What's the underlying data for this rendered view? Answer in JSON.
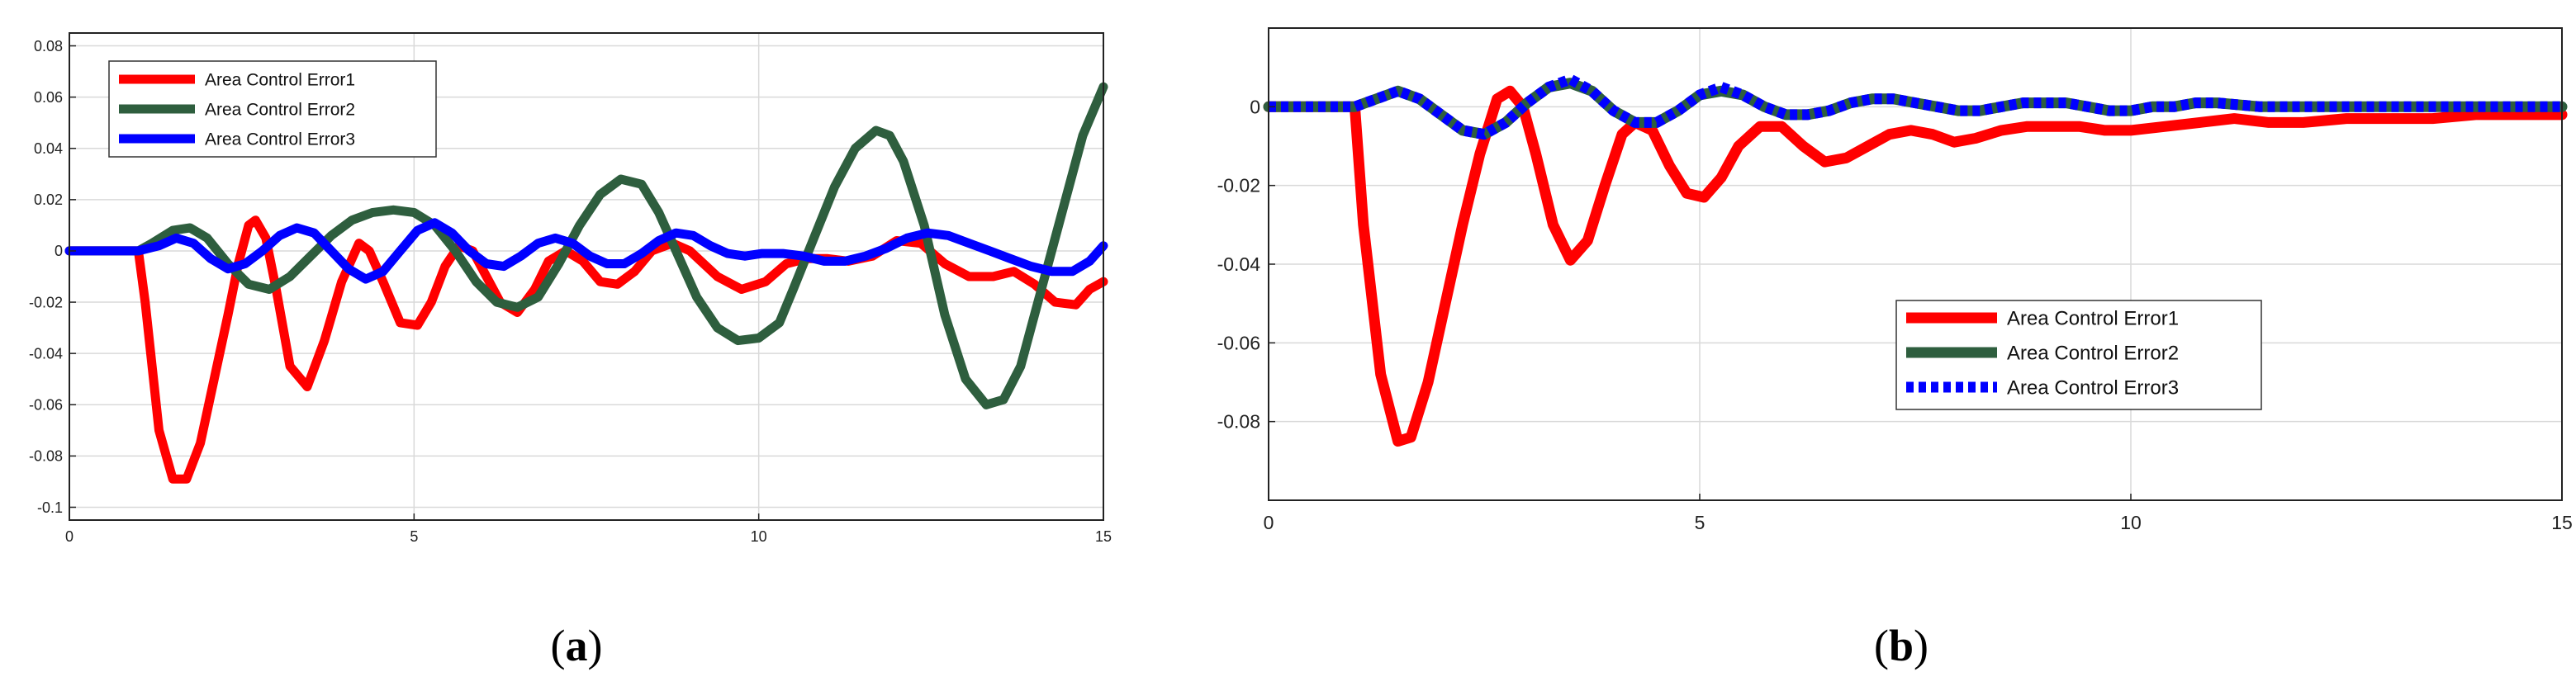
{
  "chart_data": [
    {
      "panel": "a",
      "type": "line",
      "xlim": [
        0,
        15
      ],
      "ylim": [
        -0.105,
        0.085
      ],
      "xticks": [
        0,
        5,
        10,
        15
      ],
      "yticks": [
        -0.1,
        -0.08,
        -0.06,
        -0.04,
        -0.02,
        0,
        0.02,
        0.04,
        0.06,
        0.08
      ],
      "ytick_labels": [
        "-0.1",
        "-0.08",
        "-0.06",
        "-0.04",
        "-0.02",
        "0",
        "0.02",
        "0.04",
        "0.06",
        "0.08"
      ],
      "grid": true,
      "legend_position": "top-left",
      "series": [
        {
          "name": "Area Control Error1",
          "color": "#ff0000",
          "style": "solid",
          "x": [
            0,
            1.0,
            1.1,
            1.3,
            1.5,
            1.7,
            1.9,
            2.1,
            2.3,
            2.45,
            2.6,
            2.7,
            2.85,
            3.0,
            3.2,
            3.45,
            3.7,
            3.95,
            4.2,
            4.35,
            4.55,
            4.8,
            5.05,
            5.25,
            5.45,
            5.65,
            5.85,
            6.05,
            6.25,
            6.5,
            6.75,
            6.95,
            7.2,
            7.45,
            7.7,
            7.95,
            8.2,
            8.45,
            8.75,
            9.0,
            9.4,
            9.75,
            10.1,
            10.4,
            10.7,
            11.0,
            11.3,
            11.65,
            12.0,
            12.35,
            12.7,
            13.05,
            13.4,
            13.7,
            14.0,
            14.3,
            14.6,
            14.8,
            15.0
          ],
          "y": [
            0,
            0,
            -0.02,
            -0.07,
            -0.089,
            -0.089,
            -0.075,
            -0.05,
            -0.025,
            -0.005,
            0.01,
            0.012,
            0.005,
            -0.015,
            -0.045,
            -0.053,
            -0.035,
            -0.012,
            0.003,
            0.0,
            -0.012,
            -0.028,
            -0.029,
            -0.02,
            -0.006,
            0.002,
            0.0,
            -0.01,
            -0.02,
            -0.024,
            -0.015,
            -0.004,
            0.0,
            -0.004,
            -0.012,
            -0.013,
            -0.008,
            0.0,
            0.003,
            0.0,
            -0.01,
            -0.015,
            -0.012,
            -0.005,
            -0.003,
            -0.003,
            -0.004,
            -0.002,
            0.004,
            0.003,
            -0.005,
            -0.01,
            -0.01,
            -0.008,
            -0.013,
            -0.02,
            -0.021,
            -0.015,
            -0.012
          ]
        },
        {
          "name": "Area Control Error2",
          "color": "#2e5e3e",
          "style": "solid",
          "x": [
            0,
            1.0,
            1.2,
            1.5,
            1.75,
            2.0,
            2.3,
            2.6,
            2.9,
            3.2,
            3.5,
            3.8,
            4.1,
            4.4,
            4.7,
            5.0,
            5.3,
            5.6,
            5.9,
            6.2,
            6.5,
            6.8,
            7.1,
            7.4,
            7.7,
            8.0,
            8.3,
            8.55,
            8.8,
            9.1,
            9.4,
            9.7,
            10.0,
            10.3,
            10.5,
            10.8,
            11.1,
            11.4,
            11.7,
            11.9,
            12.1,
            12.4,
            12.7,
            13.0,
            13.3,
            13.55,
            13.8,
            14.1,
            14.4,
            14.7,
            15.0
          ],
          "y": [
            0,
            0,
            0.003,
            0.008,
            0.009,
            0.005,
            -0.005,
            -0.013,
            -0.015,
            -0.01,
            -0.002,
            0.006,
            0.012,
            0.015,
            0.016,
            0.015,
            0.01,
            0.0,
            -0.012,
            -0.02,
            -0.022,
            -0.018,
            -0.005,
            0.01,
            0.022,
            0.028,
            0.026,
            0.015,
            0.0,
            -0.018,
            -0.03,
            -0.035,
            -0.034,
            -0.028,
            -0.015,
            0.005,
            0.025,
            0.04,
            0.047,
            0.045,
            0.035,
            0.01,
            -0.025,
            -0.05,
            -0.06,
            -0.058,
            -0.045,
            -0.015,
            0.015,
            0.045,
            0.064
          ]
        },
        {
          "name": "Area Control Error3",
          "color": "#0000ff",
          "style": "solid",
          "x": [
            0,
            1.0,
            1.3,
            1.55,
            1.8,
            2.05,
            2.3,
            2.55,
            2.8,
            3.05,
            3.3,
            3.55,
            3.8,
            4.05,
            4.3,
            4.55,
            4.8,
            5.05,
            5.3,
            5.55,
            5.8,
            6.05,
            6.3,
            6.55,
            6.8,
            7.05,
            7.3,
            7.55,
            7.8,
            8.05,
            8.3,
            8.55,
            8.8,
            9.05,
            9.3,
            9.55,
            9.8,
            10.05,
            10.35,
            10.65,
            10.95,
            11.25,
            11.55,
            11.85,
            12.15,
            12.45,
            12.75,
            13.05,
            13.35,
            13.65,
            13.95,
            14.25,
            14.55,
            14.8,
            15.0
          ],
          "y": [
            0,
            0,
            0.002,
            0.005,
            0.003,
            -0.003,
            -0.007,
            -0.005,
            0.0,
            0.006,
            0.009,
            0.007,
            0.0,
            -0.007,
            -0.011,
            -0.008,
            0.0,
            0.008,
            0.011,
            0.007,
            0.0,
            -0.005,
            -0.006,
            -0.002,
            0.003,
            0.005,
            0.003,
            -0.002,
            -0.005,
            -0.005,
            -0.001,
            0.004,
            0.007,
            0.006,
            0.002,
            -0.001,
            -0.002,
            -0.001,
            -0.001,
            -0.002,
            -0.004,
            -0.004,
            -0.002,
            0.001,
            0.005,
            0.007,
            0.006,
            0.003,
            0.0,
            -0.003,
            -0.006,
            -0.008,
            -0.008,
            -0.004,
            0.002
          ]
        }
      ]
    },
    {
      "panel": "b",
      "type": "line",
      "xlim": [
        0,
        15
      ],
      "ylim": [
        -0.1,
        0.02
      ],
      "xticks": [
        0,
        5,
        10,
        15
      ],
      "yticks": [
        -0.08,
        -0.06,
        -0.04,
        -0.02,
        0
      ],
      "ytick_labels": [
        "-0.08",
        "-0.06",
        "-0.04",
        "-0.02",
        "0"
      ],
      "grid": true,
      "legend_position": "lower-middle",
      "series": [
        {
          "name": "Area Control Error1",
          "color": "#ff0000",
          "style": "solid",
          "x": [
            0,
            1.0,
            1.1,
            1.3,
            1.5,
            1.65,
            1.85,
            2.05,
            2.25,
            2.45,
            2.65,
            2.8,
            2.95,
            3.1,
            3.3,
            3.5,
            3.7,
            3.9,
            4.1,
            4.25,
            4.45,
            4.65,
            4.85,
            5.05,
            5.25,
            5.45,
            5.7,
            5.95,
            6.2,
            6.45,
            6.7,
            6.95,
            7.2,
            7.45,
            7.7,
            7.95,
            8.2,
            8.5,
            8.8,
            9.1,
            9.4,
            9.7,
            10.0,
            10.4,
            10.8,
            11.2,
            11.6,
            12.0,
            12.5,
            13.0,
            13.5,
            14.0,
            14.5,
            15.0
          ],
          "y": [
            0,
            0,
            -0.03,
            -0.068,
            -0.085,
            -0.084,
            -0.07,
            -0.05,
            -0.03,
            -0.012,
            0.002,
            0.004,
            0.0,
            -0.012,
            -0.03,
            -0.039,
            -0.034,
            -0.02,
            -0.007,
            -0.004,
            -0.006,
            -0.015,
            -0.022,
            -0.023,
            -0.018,
            -0.01,
            -0.005,
            -0.005,
            -0.01,
            -0.014,
            -0.013,
            -0.01,
            -0.007,
            -0.006,
            -0.007,
            -0.009,
            -0.008,
            -0.006,
            -0.005,
            -0.005,
            -0.005,
            -0.006,
            -0.006,
            -0.005,
            -0.004,
            -0.003,
            -0.004,
            -0.004,
            -0.003,
            -0.003,
            -0.003,
            -0.002,
            -0.002,
            -0.002
          ]
        },
        {
          "name": "Area Control Error2",
          "color": "#2e5e3e",
          "style": "solid",
          "x": [
            0,
            1.0,
            1.25,
            1.5,
            1.75,
            2.0,
            2.25,
            2.5,
            2.75,
            3.0,
            3.25,
            3.5,
            3.75,
            4.0,
            4.25,
            4.5,
            4.75,
            5.0,
            5.25,
            5.5,
            5.75,
            6.0,
            6.25,
            6.5,
            6.75,
            7.0,
            7.25,
            7.5,
            7.75,
            8.0,
            8.25,
            8.5,
            8.75,
            9.0,
            9.25,
            9.5,
            9.75,
            10.0,
            10.25,
            10.5,
            10.75,
            11.0,
            11.5,
            12.0,
            12.5,
            13.0,
            13.5,
            14.0,
            14.5,
            15.0
          ],
          "y": [
            0,
            0,
            0.002,
            0.004,
            0.002,
            -0.002,
            -0.006,
            -0.007,
            -0.004,
            0.001,
            0.005,
            0.006,
            0.004,
            -0.001,
            -0.004,
            -0.004,
            -0.001,
            0.003,
            0.004,
            0.003,
            0.0,
            -0.002,
            -0.002,
            -0.001,
            0.001,
            0.002,
            0.002,
            0.001,
            0.0,
            -0.001,
            -0.001,
            0.0,
            0.001,
            0.001,
            0.001,
            0.0,
            -0.001,
            -0.001,
            0.0,
            0.0,
            0.001,
            0.001,
            0.0,
            0.0,
            0.0,
            0.0,
            0.0,
            0.0,
            0.0,
            0.0
          ]
        },
        {
          "name": "Area Control Error3",
          "color": "#0000ff",
          "style": "dotted",
          "x": [
            0,
            1.0,
            1.25,
            1.5,
            1.75,
            2.0,
            2.25,
            2.5,
            2.75,
            3.0,
            3.25,
            3.5,
            3.75,
            4.0,
            4.25,
            4.5,
            4.75,
            5.0,
            5.25,
            5.5,
            5.75,
            6.0,
            6.25,
            6.5,
            6.75,
            7.0,
            7.25,
            7.5,
            7.75,
            8.0,
            8.25,
            8.5,
            8.75,
            9.0,
            9.25,
            9.5,
            9.75,
            10.0,
            10.25,
            10.5,
            10.75,
            11.0,
            11.5,
            12.0,
            12.5,
            13.0,
            13.5,
            14.0,
            14.5,
            15.0
          ],
          "y": [
            0,
            0,
            0.002,
            0.004,
            0.002,
            -0.002,
            -0.006,
            -0.007,
            -0.004,
            0.001,
            0.005,
            0.007,
            0.004,
            -0.001,
            -0.004,
            -0.004,
            -0.001,
            0.003,
            0.005,
            0.003,
            0.0,
            -0.002,
            -0.002,
            -0.001,
            0.001,
            0.002,
            0.002,
            0.001,
            0.0,
            -0.001,
            -0.001,
            0.0,
            0.001,
            0.001,
            0.001,
            0.0,
            -0.001,
            -0.001,
            0.0,
            0.0,
            0.001,
            0.001,
            0.0,
            0.0,
            0.0,
            0.0,
            0.0,
            0.0,
            0.0,
            0.0
          ]
        }
      ]
    }
  ],
  "captions": [
    {
      "open": "(",
      "letter": "a",
      "close": ")"
    },
    {
      "open": "(",
      "letter": "b",
      "close": ")"
    }
  ]
}
